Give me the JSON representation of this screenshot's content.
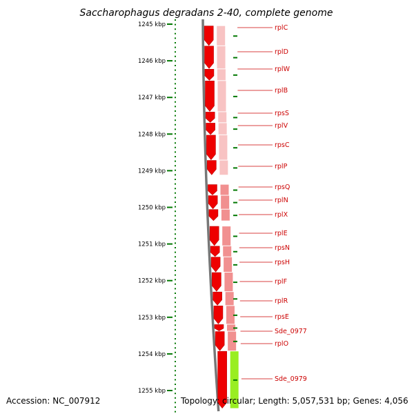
{
  "title": "Saccharophagus degradans 2-40, complete genome",
  "accession": "Accession: NC_007912",
  "summary": "Topology: circular; Length: 5,057,531 bp; Genes: 4,056",
  "colors": {
    "cds": "#ee0000",
    "cds_shadow": "#bb0000",
    "cds_track": "#f08a8a",
    "cds_track_light": "#f8c0c0",
    "other_gene": "#99ee22",
    "backbone": "#777777",
    "ticks": "#007700",
    "label": "#cc0000"
  },
  "scale_ticks": [
    {
      "kbp": 1245,
      "label": "1245 kbp"
    },
    {
      "kbp": 1246,
      "label": "1246 kbp"
    },
    {
      "kbp": 1247,
      "label": "1247 kbp"
    },
    {
      "kbp": 1248,
      "label": "1248 kbp"
    },
    {
      "kbp": 1249,
      "label": "1249 kbp"
    },
    {
      "kbp": 1250,
      "label": "1250 kbp"
    },
    {
      "kbp": 1251,
      "label": "1251 kbp"
    },
    {
      "kbp": 1252,
      "label": "1252 kbp"
    },
    {
      "kbp": 1253,
      "label": "1253 kbp"
    },
    {
      "kbp": 1254,
      "label": "1254 kbp"
    },
    {
      "kbp": 1255,
      "label": "1255 kbp"
    }
  ],
  "genes": [
    {
      "name": "rplC",
      "start": 1245.05,
      "end": 1245.6,
      "type": "CDS"
    },
    {
      "name": "rplD",
      "start": 1245.6,
      "end": 1246.23,
      "type": "CDS"
    },
    {
      "name": "rplW",
      "start": 1246.23,
      "end": 1246.55,
      "type": "CDS"
    },
    {
      "name": "rplB",
      "start": 1246.55,
      "end": 1247.4,
      "type": "CDS"
    },
    {
      "name": "rpsS",
      "start": 1247.4,
      "end": 1247.7,
      "type": "CDS"
    },
    {
      "name": "rplV",
      "start": 1247.7,
      "end": 1248.03,
      "type": "CDS"
    },
    {
      "name": "rpsC",
      "start": 1248.03,
      "end": 1248.72,
      "type": "CDS"
    },
    {
      "name": "rplP",
      "start": 1248.72,
      "end": 1249.13,
      "type": "CDS"
    },
    {
      "name": "rpsQ",
      "start": 1249.38,
      "end": 1249.68,
      "type": "CDS"
    },
    {
      "name": "rplN",
      "start": 1249.68,
      "end": 1250.06,
      "type": "CDS"
    },
    {
      "name": "rplX",
      "start": 1250.06,
      "end": 1250.38,
      "type": "CDS"
    },
    {
      "name": "rplE",
      "start": 1250.52,
      "end": 1251.06,
      "type": "CDS"
    },
    {
      "name": "rpsN",
      "start": 1251.06,
      "end": 1251.36,
      "type": "CDS"
    },
    {
      "name": "rpsH",
      "start": 1251.36,
      "end": 1251.78,
      "type": "CDS"
    },
    {
      "name": "rplF",
      "start": 1251.78,
      "end": 1252.31,
      "type": "CDS"
    },
    {
      "name": "rplR",
      "start": 1252.31,
      "end": 1252.69,
      "type": "CDS"
    },
    {
      "name": "rpsE",
      "start": 1252.69,
      "end": 1253.2,
      "type": "CDS"
    },
    {
      "name": "Sde_0977",
      "start": 1253.2,
      "end": 1253.39,
      "type": "CDS"
    },
    {
      "name": "rplO",
      "start": 1253.39,
      "end": 1253.93,
      "type": "CDS"
    },
    {
      "name": "Sde_0979",
      "start": 1253.93,
      "end": 1255.5,
      "type": "other"
    }
  ]
}
